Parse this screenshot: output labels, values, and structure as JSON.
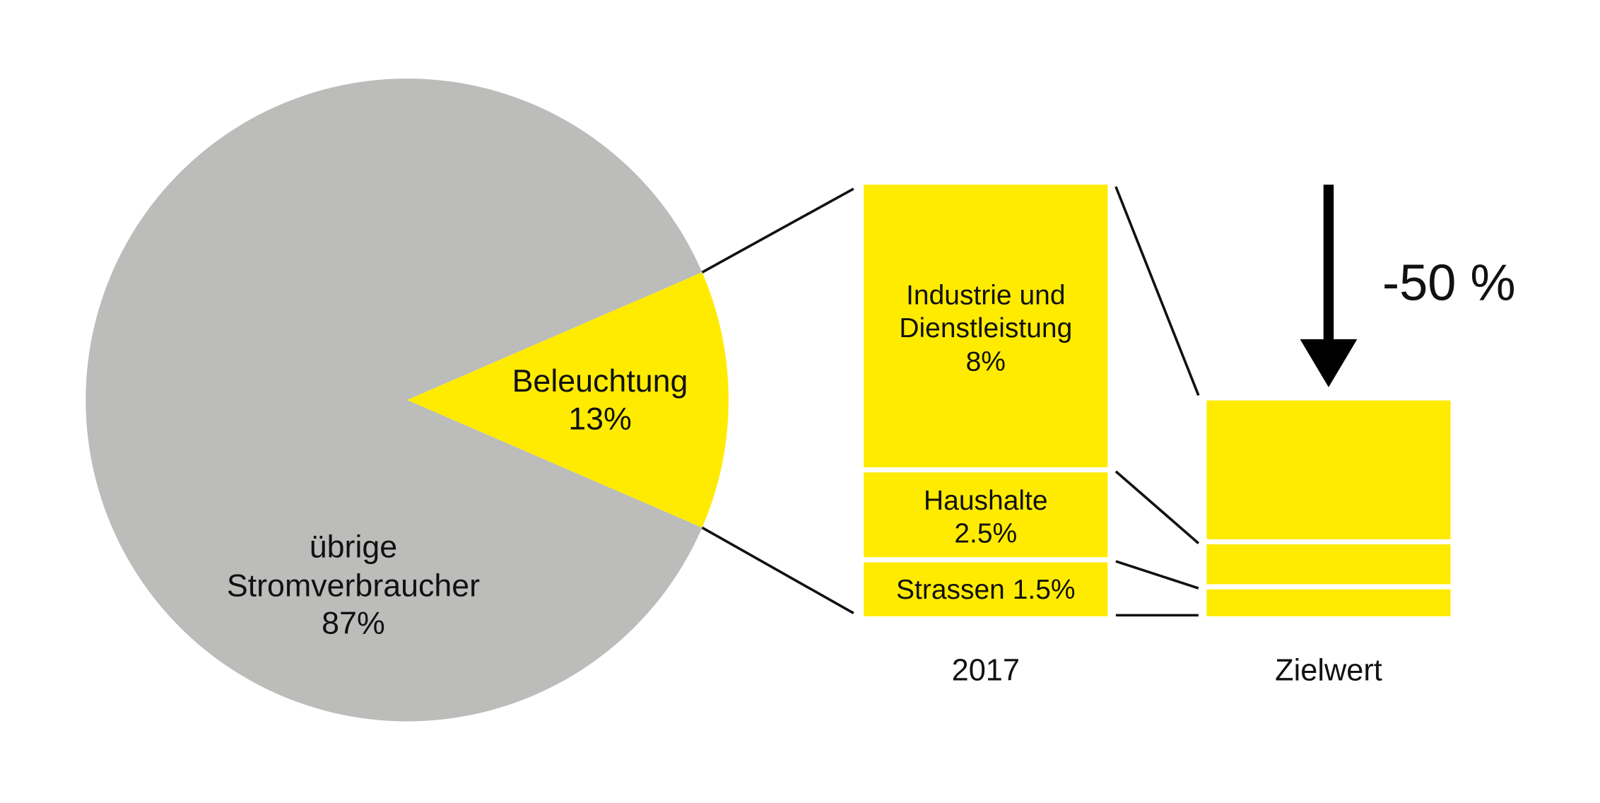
{
  "chart_data": [
    {
      "type": "pie",
      "categories": [
        "übrige Stromverbraucher",
        "Beleuchtung"
      ],
      "values": [
        87,
        13
      ],
      "value_labels": [
        "87%",
        "13%"
      ],
      "colors": [
        "#bcbcbb",
        "#ffeb00"
      ]
    },
    {
      "type": "bar",
      "stacked": true,
      "categories": [
        "2017",
        "Zielwert"
      ],
      "series": [
        {
          "name": "Industrie und Dienstleistung",
          "color": "#ffeb00",
          "values": [
            8,
            4
          ],
          "value_labels": [
            "8%",
            null
          ]
        },
        {
          "name": "Haushalte",
          "color": "#ffeb00",
          "values": [
            2.5,
            1.25
          ],
          "value_labels": [
            "2.5%",
            null
          ]
        },
        {
          "name": "Strassen",
          "color": "#ffeb00",
          "values": [
            1.5,
            0.75
          ],
          "value_labels": [
            "1.5%",
            null
          ]
        }
      ],
      "annotation": "-50 %"
    }
  ]
}
